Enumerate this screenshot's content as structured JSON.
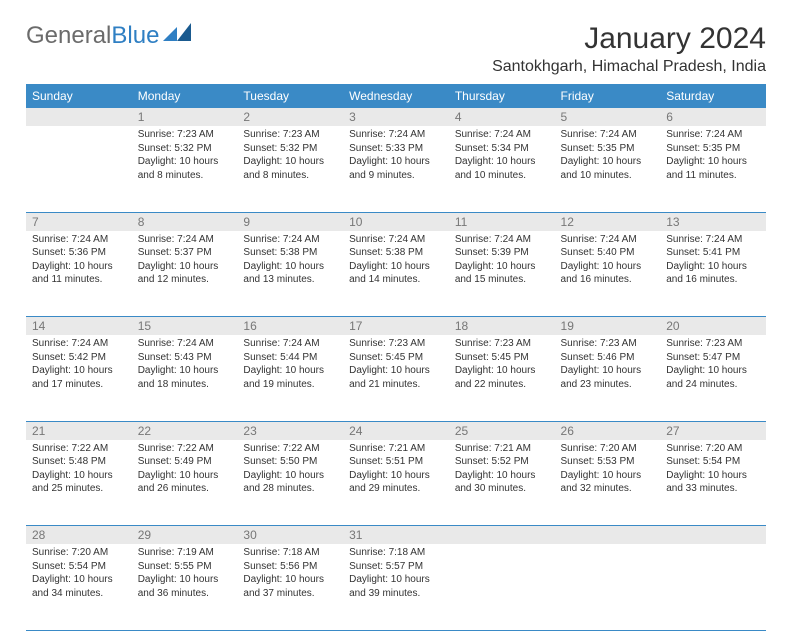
{
  "logo": {
    "part1": "General",
    "part2": "Blue"
  },
  "title": "January 2024",
  "subtitle": "Santokhgarh, Himachal Pradesh, India",
  "colors": {
    "header_bg": "#3a8ac6",
    "header_fg": "#ffffff",
    "daynum_bg": "#e9e9e9",
    "daynum_fg": "#777777",
    "text": "#333333",
    "rule": "#3a8ac6"
  },
  "weekdays": [
    "Sunday",
    "Monday",
    "Tuesday",
    "Wednesday",
    "Thursday",
    "Friday",
    "Saturday"
  ],
  "weeks": [
    [
      null,
      {
        "n": "1",
        "sr": "Sunrise: 7:23 AM",
        "ss": "Sunset: 5:32 PM",
        "d1": "Daylight: 10 hours",
        "d2": "and 8 minutes."
      },
      {
        "n": "2",
        "sr": "Sunrise: 7:23 AM",
        "ss": "Sunset: 5:32 PM",
        "d1": "Daylight: 10 hours",
        "d2": "and 8 minutes."
      },
      {
        "n": "3",
        "sr": "Sunrise: 7:24 AM",
        "ss": "Sunset: 5:33 PM",
        "d1": "Daylight: 10 hours",
        "d2": "and 9 minutes."
      },
      {
        "n": "4",
        "sr": "Sunrise: 7:24 AM",
        "ss": "Sunset: 5:34 PM",
        "d1": "Daylight: 10 hours",
        "d2": "and 10 minutes."
      },
      {
        "n": "5",
        "sr": "Sunrise: 7:24 AM",
        "ss": "Sunset: 5:35 PM",
        "d1": "Daylight: 10 hours",
        "d2": "and 10 minutes."
      },
      {
        "n": "6",
        "sr": "Sunrise: 7:24 AM",
        "ss": "Sunset: 5:35 PM",
        "d1": "Daylight: 10 hours",
        "d2": "and 11 minutes."
      }
    ],
    [
      {
        "n": "7",
        "sr": "Sunrise: 7:24 AM",
        "ss": "Sunset: 5:36 PM",
        "d1": "Daylight: 10 hours",
        "d2": "and 11 minutes."
      },
      {
        "n": "8",
        "sr": "Sunrise: 7:24 AM",
        "ss": "Sunset: 5:37 PM",
        "d1": "Daylight: 10 hours",
        "d2": "and 12 minutes."
      },
      {
        "n": "9",
        "sr": "Sunrise: 7:24 AM",
        "ss": "Sunset: 5:38 PM",
        "d1": "Daylight: 10 hours",
        "d2": "and 13 minutes."
      },
      {
        "n": "10",
        "sr": "Sunrise: 7:24 AM",
        "ss": "Sunset: 5:38 PM",
        "d1": "Daylight: 10 hours",
        "d2": "and 14 minutes."
      },
      {
        "n": "11",
        "sr": "Sunrise: 7:24 AM",
        "ss": "Sunset: 5:39 PM",
        "d1": "Daylight: 10 hours",
        "d2": "and 15 minutes."
      },
      {
        "n": "12",
        "sr": "Sunrise: 7:24 AM",
        "ss": "Sunset: 5:40 PM",
        "d1": "Daylight: 10 hours",
        "d2": "and 16 minutes."
      },
      {
        "n": "13",
        "sr": "Sunrise: 7:24 AM",
        "ss": "Sunset: 5:41 PM",
        "d1": "Daylight: 10 hours",
        "d2": "and 16 minutes."
      }
    ],
    [
      {
        "n": "14",
        "sr": "Sunrise: 7:24 AM",
        "ss": "Sunset: 5:42 PM",
        "d1": "Daylight: 10 hours",
        "d2": "and 17 minutes."
      },
      {
        "n": "15",
        "sr": "Sunrise: 7:24 AM",
        "ss": "Sunset: 5:43 PM",
        "d1": "Daylight: 10 hours",
        "d2": "and 18 minutes."
      },
      {
        "n": "16",
        "sr": "Sunrise: 7:24 AM",
        "ss": "Sunset: 5:44 PM",
        "d1": "Daylight: 10 hours",
        "d2": "and 19 minutes."
      },
      {
        "n": "17",
        "sr": "Sunrise: 7:23 AM",
        "ss": "Sunset: 5:45 PM",
        "d1": "Daylight: 10 hours",
        "d2": "and 21 minutes."
      },
      {
        "n": "18",
        "sr": "Sunrise: 7:23 AM",
        "ss": "Sunset: 5:45 PM",
        "d1": "Daylight: 10 hours",
        "d2": "and 22 minutes."
      },
      {
        "n": "19",
        "sr": "Sunrise: 7:23 AM",
        "ss": "Sunset: 5:46 PM",
        "d1": "Daylight: 10 hours",
        "d2": "and 23 minutes."
      },
      {
        "n": "20",
        "sr": "Sunrise: 7:23 AM",
        "ss": "Sunset: 5:47 PM",
        "d1": "Daylight: 10 hours",
        "d2": "and 24 minutes."
      }
    ],
    [
      {
        "n": "21",
        "sr": "Sunrise: 7:22 AM",
        "ss": "Sunset: 5:48 PM",
        "d1": "Daylight: 10 hours",
        "d2": "and 25 minutes."
      },
      {
        "n": "22",
        "sr": "Sunrise: 7:22 AM",
        "ss": "Sunset: 5:49 PM",
        "d1": "Daylight: 10 hours",
        "d2": "and 26 minutes."
      },
      {
        "n": "23",
        "sr": "Sunrise: 7:22 AM",
        "ss": "Sunset: 5:50 PM",
        "d1": "Daylight: 10 hours",
        "d2": "and 28 minutes."
      },
      {
        "n": "24",
        "sr": "Sunrise: 7:21 AM",
        "ss": "Sunset: 5:51 PM",
        "d1": "Daylight: 10 hours",
        "d2": "and 29 minutes."
      },
      {
        "n": "25",
        "sr": "Sunrise: 7:21 AM",
        "ss": "Sunset: 5:52 PM",
        "d1": "Daylight: 10 hours",
        "d2": "and 30 minutes."
      },
      {
        "n": "26",
        "sr": "Sunrise: 7:20 AM",
        "ss": "Sunset: 5:53 PM",
        "d1": "Daylight: 10 hours",
        "d2": "and 32 minutes."
      },
      {
        "n": "27",
        "sr": "Sunrise: 7:20 AM",
        "ss": "Sunset: 5:54 PM",
        "d1": "Daylight: 10 hours",
        "d2": "and 33 minutes."
      }
    ],
    [
      {
        "n": "28",
        "sr": "Sunrise: 7:20 AM",
        "ss": "Sunset: 5:54 PM",
        "d1": "Daylight: 10 hours",
        "d2": "and 34 minutes."
      },
      {
        "n": "29",
        "sr": "Sunrise: 7:19 AM",
        "ss": "Sunset: 5:55 PM",
        "d1": "Daylight: 10 hours",
        "d2": "and 36 minutes."
      },
      {
        "n": "30",
        "sr": "Sunrise: 7:18 AM",
        "ss": "Sunset: 5:56 PM",
        "d1": "Daylight: 10 hours",
        "d2": "and 37 minutes."
      },
      {
        "n": "31",
        "sr": "Sunrise: 7:18 AM",
        "ss": "Sunset: 5:57 PM",
        "d1": "Daylight: 10 hours",
        "d2": "and 39 minutes."
      },
      null,
      null,
      null
    ]
  ]
}
